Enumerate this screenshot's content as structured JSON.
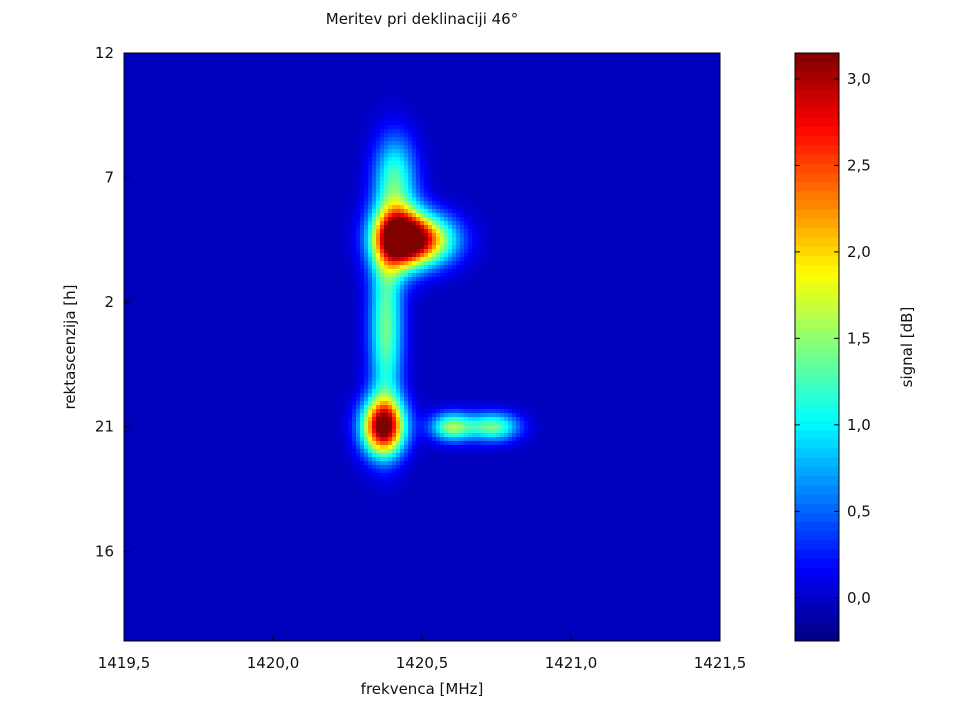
{
  "chart_data": {
    "type": "heatmap",
    "title": "Meritev pri deklinaciji 46°",
    "xlabel": "frekvenca [MHz]",
    "ylabel": "rektascenzija [h]",
    "colorbar_label": "signal [dB]",
    "colormap": "jet",
    "xlim": [
      1419.5,
      1421.5
    ],
    "x_ticks": [
      1419.5,
      1420.0,
      1420.5,
      1421.0,
      1421.5
    ],
    "x_tick_labels": [
      "1419,5",
      "1420,0",
      "1420,5",
      "1421,0",
      "1421,5"
    ],
    "y_ticks": [
      12,
      7,
      2,
      21,
      16
    ],
    "y_tick_labels": [
      "12",
      "7",
      "2",
      "21",
      "16"
    ],
    "colorbar_range": [
      -0.25,
      3.15
    ],
    "colorbar_ticks": [
      0.0,
      0.5,
      1.0,
      1.5,
      2.0,
      2.5,
      3.0
    ],
    "colorbar_tick_labels": [
      "0,0",
      "0,5",
      "1,0",
      "1,5",
      "2,0",
      "2,5",
      "3,0"
    ],
    "background_level": -0.05,
    "features": [
      {
        "freq": 1420.42,
        "ra": 4.6,
        "value": 2.6,
        "freq_width": 0.06,
        "ra_width": 0.9
      },
      {
        "freq": 1420.5,
        "ra": 4.5,
        "value": 2.3,
        "freq_width": 0.08,
        "ra_width": 0.7
      },
      {
        "freq": 1420.37,
        "ra": 21.0,
        "value": 3.1,
        "freq_width": 0.05,
        "ra_width": 0.8
      },
      {
        "freq": 1420.6,
        "ra": 21.0,
        "value": 1.5,
        "freq_width": 0.05,
        "ra_width": 0.4
      },
      {
        "freq": 1420.74,
        "ra": 21.0,
        "value": 1.4,
        "freq_width": 0.06,
        "ra_width": 0.4
      },
      {
        "freq": 1420.38,
        "ra": 1.0,
        "value": 1.4,
        "freq_width": 0.04,
        "ra_width": 2.5
      },
      {
        "freq": 1420.41,
        "ra": 7.0,
        "value": 1.2,
        "freq_width": 0.05,
        "ra_width": 1.2
      }
    ]
  }
}
